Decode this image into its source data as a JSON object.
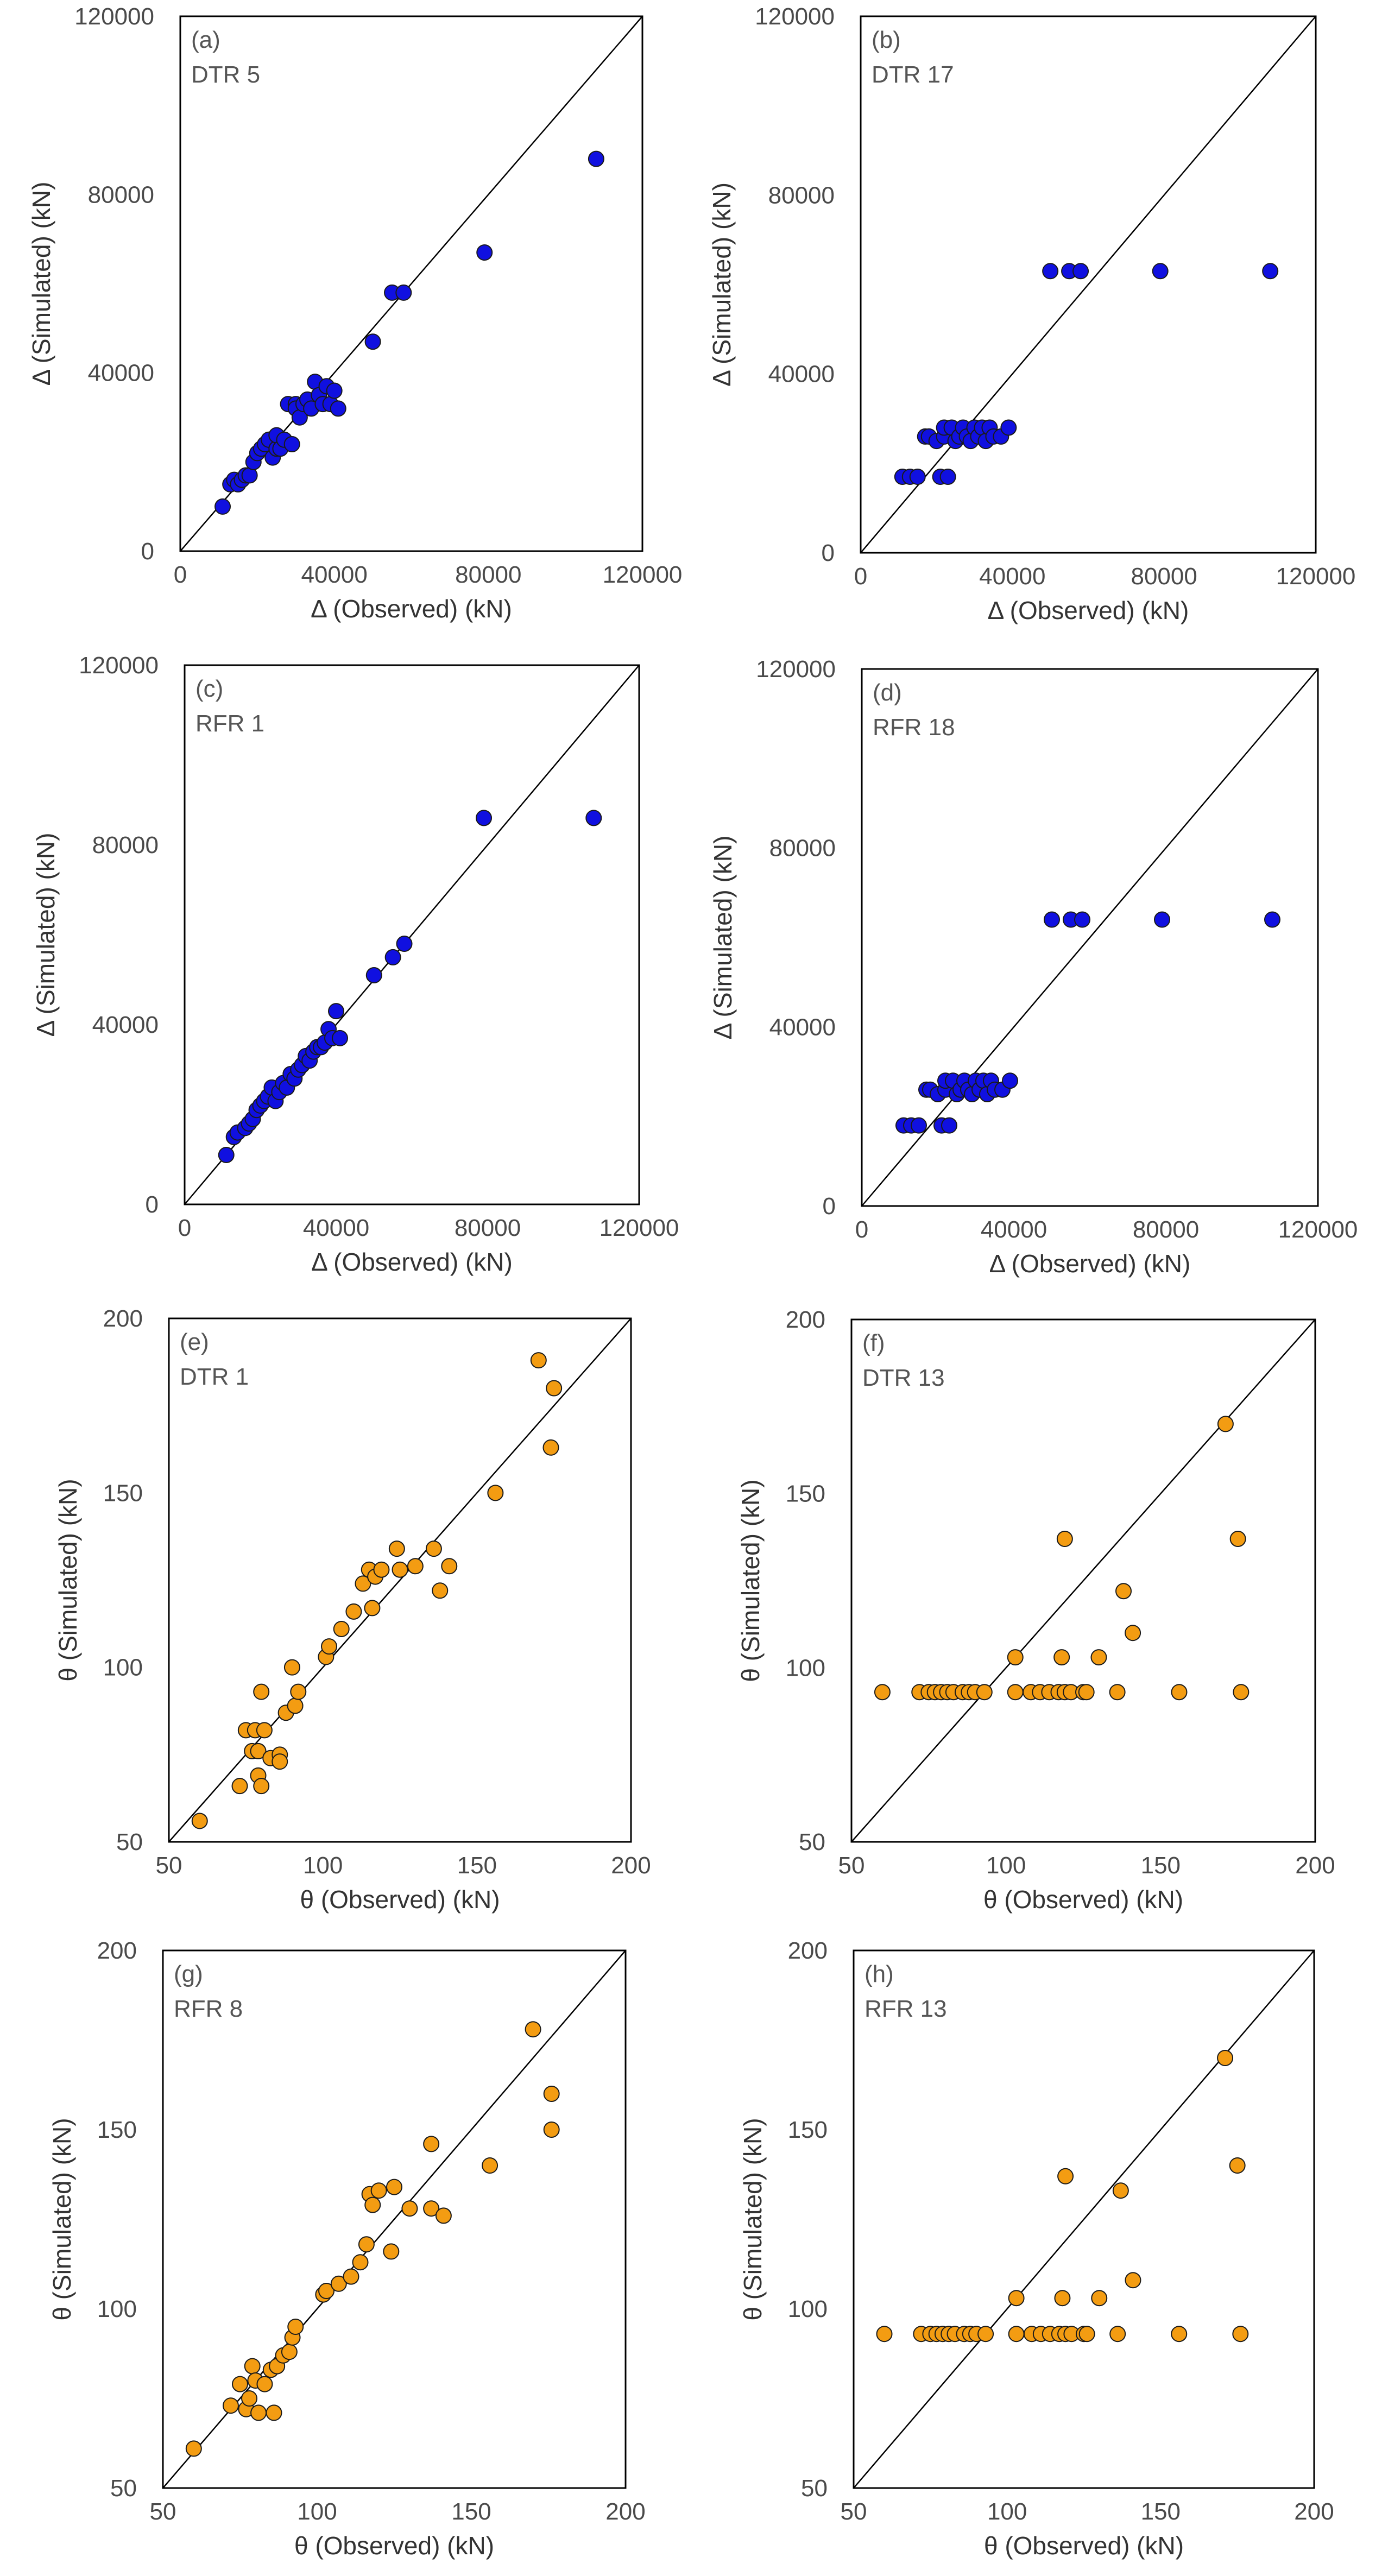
{
  "chart_data": [
    {
      "id": "a",
      "type": "scatter",
      "panel_label": "(a)",
      "subtitle": "DTR 5",
      "xlabel": "Δ (Observed) (kN)",
      "ylabel": "Δ (Simulated) (kN)",
      "xlim": [
        0,
        120000
      ],
      "ylim": [
        0,
        120000
      ],
      "xticks": [
        "0",
        "40000",
        "80000",
        "120000"
      ],
      "yticks": [
        "0",
        "40000",
        "80000",
        "120000"
      ],
      "xtick_values": [
        0,
        40000,
        80000,
        120000
      ],
      "ytick_values": [
        0,
        40000,
        80000,
        120000
      ],
      "reference_line": "y = x",
      "marker_color": "#1010e0",
      "points": [
        [
          11000,
          10000
        ],
        [
          13000,
          15000
        ],
        [
          14000,
          16000
        ],
        [
          15000,
          15000
        ],
        [
          16000,
          16000
        ],
        [
          17000,
          17000
        ],
        [
          18000,
          17000
        ],
        [
          19000,
          20000
        ],
        [
          20000,
          22000
        ],
        [
          21000,
          23000
        ],
        [
          22000,
          24000
        ],
        [
          23000,
          25000
        ],
        [
          24000,
          21000
        ],
        [
          25000,
          23000
        ],
        [
          25000,
          26000
        ],
        [
          26000,
          23000
        ],
        [
          27000,
          25000
        ],
        [
          28000,
          33000
        ],
        [
          29000,
          24000
        ],
        [
          30000,
          33000
        ],
        [
          30000,
          32000
        ],
        [
          31000,
          30000
        ],
        [
          32000,
          33000
        ],
        [
          33000,
          34000
        ],
        [
          34000,
          32000
        ],
        [
          35000,
          38000
        ],
        [
          36000,
          35000
        ],
        [
          37000,
          33000
        ],
        [
          38000,
          37000
        ],
        [
          39000,
          33000
        ],
        [
          40000,
          36000
        ],
        [
          41000,
          32000
        ],
        [
          50000,
          47000
        ],
        [
          55000,
          58000
        ],
        [
          58000,
          58000
        ],
        [
          79000,
          67000
        ],
        [
          108000,
          88000
        ]
      ]
    },
    {
      "id": "b",
      "type": "scatter",
      "panel_label": "(b)",
      "subtitle": "DTR 17",
      "xlabel": "Δ (Observed) (kN)",
      "ylabel": "Δ (Simulated) (kN)",
      "xlim": [
        0,
        120000
      ],
      "ylim": [
        0,
        120000
      ],
      "xticks": [
        "0",
        "40000",
        "80000",
        "120000"
      ],
      "yticks": [
        "0",
        "40000",
        "80000",
        "120000"
      ],
      "xtick_values": [
        0,
        40000,
        80000,
        120000
      ],
      "ytick_values": [
        0,
        40000,
        80000,
        120000
      ],
      "reference_line": "y = x",
      "marker_color": "#1010e0",
      "points": [
        [
          11000,
          17000
        ],
        [
          13000,
          17000
        ],
        [
          15000,
          17000
        ],
        [
          17000,
          26000
        ],
        [
          18000,
          26000
        ],
        [
          20000,
          25000
        ],
        [
          21000,
          17000
        ],
        [
          22000,
          26000
        ],
        [
          22000,
          28000
        ],
        [
          23000,
          17000
        ],
        [
          24000,
          28000
        ],
        [
          25000,
          25000
        ],
        [
          26000,
          26000
        ],
        [
          27000,
          28000
        ],
        [
          28000,
          26000
        ],
        [
          29000,
          25000
        ],
        [
          30000,
          28000
        ],
        [
          31000,
          26000
        ],
        [
          32000,
          28000
        ],
        [
          33000,
          25000
        ],
        [
          34000,
          28000
        ],
        [
          35000,
          26000
        ],
        [
          37000,
          26000
        ],
        [
          39000,
          28000
        ],
        [
          50000,
          63000
        ],
        [
          55000,
          63000
        ],
        [
          58000,
          63000
        ],
        [
          79000,
          63000
        ],
        [
          108000,
          63000
        ]
      ]
    },
    {
      "id": "c",
      "type": "scatter",
      "panel_label": "(c)",
      "subtitle": "RFR 1",
      "xlabel": "Δ (Observed) (kN)",
      "ylabel": "Δ (Simulated) (kN)",
      "xlim": [
        0,
        120000
      ],
      "ylim": [
        0,
        120000
      ],
      "xticks": [
        "0",
        "40000",
        "80000",
        "120000"
      ],
      "yticks": [
        "0",
        "40000",
        "80000",
        "120000"
      ],
      "xtick_values": [
        0,
        40000,
        80000,
        120000
      ],
      "ytick_values": [
        0,
        40000,
        80000,
        120000
      ],
      "reference_line": "y = x",
      "marker_color": "#1010e0",
      "points": [
        [
          11000,
          11000
        ],
        [
          13000,
          15000
        ],
        [
          14000,
          16000
        ],
        [
          16000,
          17000
        ],
        [
          17000,
          18000
        ],
        [
          18000,
          19000
        ],
        [
          19000,
          21000
        ],
        [
          20000,
          22000
        ],
        [
          21000,
          23000
        ],
        [
          22000,
          24000
        ],
        [
          23000,
          26000
        ],
        [
          24000,
          23000
        ],
        [
          25000,
          25000
        ],
        [
          26000,
          27000
        ],
        [
          27000,
          26000
        ],
        [
          28000,
          29000
        ],
        [
          29000,
          28000
        ],
        [
          30000,
          30000
        ],
        [
          31000,
          31000
        ],
        [
          32000,
          33000
        ],
        [
          33000,
          32000
        ],
        [
          34000,
          34000
        ],
        [
          35000,
          35000
        ],
        [
          36000,
          35000
        ],
        [
          37000,
          36000
        ],
        [
          38000,
          39000
        ],
        [
          39000,
          37000
        ],
        [
          40000,
          43000
        ],
        [
          41000,
          37000
        ],
        [
          50000,
          51000
        ],
        [
          55000,
          55000
        ],
        [
          58000,
          58000
        ],
        [
          79000,
          86000
        ],
        [
          108000,
          86000
        ]
      ]
    },
    {
      "id": "d",
      "type": "scatter",
      "panel_label": "(d)",
      "subtitle": "RFR 18",
      "xlabel": "Δ (Observed) (kN)",
      "ylabel": "Δ (Simulated) (kN)",
      "xlim": [
        0,
        120000
      ],
      "ylim": [
        0,
        120000
      ],
      "xticks": [
        "0",
        "40000",
        "80000",
        "120000"
      ],
      "yticks": [
        "0",
        "40000",
        "80000",
        "120000"
      ],
      "xtick_values": [
        0,
        40000,
        80000,
        120000
      ],
      "ytick_values": [
        0,
        40000,
        80000,
        120000
      ],
      "reference_line": "y = x",
      "marker_color": "#1010e0",
      "points": [
        [
          11000,
          18000
        ],
        [
          13000,
          18000
        ],
        [
          15000,
          18000
        ],
        [
          17000,
          26000
        ],
        [
          18000,
          26000
        ],
        [
          20000,
          25000
        ],
        [
          21000,
          18000
        ],
        [
          22000,
          26000
        ],
        [
          22000,
          28000
        ],
        [
          23000,
          18000
        ],
        [
          24000,
          28000
        ],
        [
          25000,
          25000
        ],
        [
          26000,
          26000
        ],
        [
          27000,
          28000
        ],
        [
          28000,
          26000
        ],
        [
          29000,
          25000
        ],
        [
          30000,
          28000
        ],
        [
          31000,
          26000
        ],
        [
          32000,
          28000
        ],
        [
          33000,
          25000
        ],
        [
          34000,
          28000
        ],
        [
          35000,
          26000
        ],
        [
          37000,
          26000
        ],
        [
          39000,
          28000
        ],
        [
          50000,
          64000
        ],
        [
          55000,
          64000
        ],
        [
          58000,
          64000
        ],
        [
          79000,
          64000
        ],
        [
          108000,
          64000
        ]
      ]
    },
    {
      "id": "e",
      "type": "scatter",
      "panel_label": "(e)",
      "subtitle": "DTR 1",
      "xlabel": "θ (Observed) (kN)",
      "ylabel": "θ (Simulated) (kN)",
      "xlim": [
        50,
        200
      ],
      "ylim": [
        50,
        200
      ],
      "xticks": [
        "50",
        "100",
        "150",
        "200"
      ],
      "yticks": [
        "50",
        "100",
        "150",
        "200"
      ],
      "xtick_values": [
        50,
        100,
        150,
        200
      ],
      "ytick_values": [
        50,
        100,
        150,
        200
      ],
      "reference_line": "y = x",
      "marker_color": "#f39c12",
      "points": [
        [
          60,
          56
        ],
        [
          73,
          66
        ],
        [
          75,
          82
        ],
        [
          77,
          76
        ],
        [
          78,
          82
        ],
        [
          79,
          69
        ],
        [
          79,
          76
        ],
        [
          80,
          66
        ],
        [
          80,
          93
        ],
        [
          81,
          82
        ],
        [
          83,
          74
        ],
        [
          86,
          75
        ],
        [
          86,
          73
        ],
        [
          88,
          87
        ],
        [
          90,
          100
        ],
        [
          91,
          89
        ],
        [
          92,
          93
        ],
        [
          101,
          103
        ],
        [
          102,
          106
        ],
        [
          106,
          111
        ],
        [
          110,
          116
        ],
        [
          113,
          124
        ],
        [
          115,
          128
        ],
        [
          116,
          117
        ],
        [
          117,
          126
        ],
        [
          119,
          128
        ],
        [
          124,
          134
        ],
        [
          125,
          128
        ],
        [
          130,
          129
        ],
        [
          136,
          134
        ],
        [
          138,
          122
        ],
        [
          141,
          129
        ],
        [
          156,
          150
        ],
        [
          170,
          188
        ],
        [
          174,
          163
        ],
        [
          175,
          180
        ]
      ]
    },
    {
      "id": "f",
      "type": "scatter",
      "panel_label": "(f)",
      "subtitle": "DTR 13",
      "xlabel": "θ (Observed) (kN)",
      "ylabel": "θ (Simulated) (kN)",
      "xlim": [
        50,
        200
      ],
      "ylim": [
        50,
        200
      ],
      "xticks": [
        "50",
        "100",
        "150",
        "200"
      ],
      "yticks": [
        "50",
        "100",
        "150",
        "200"
      ],
      "xtick_values": [
        50,
        100,
        150,
        200
      ],
      "ytick_values": [
        50,
        100,
        150,
        200
      ],
      "reference_line": "y = x",
      "marker_color": "#f39c12",
      "points": [
        [
          60,
          93
        ],
        [
          72,
          93
        ],
        [
          75,
          93
        ],
        [
          77,
          93
        ],
        [
          79,
          93
        ],
        [
          81,
          93
        ],
        [
          83,
          93
        ],
        [
          86,
          93
        ],
        [
          88,
          93
        ],
        [
          90,
          93
        ],
        [
          93,
          93
        ],
        [
          103,
          93
        ],
        [
          103,
          103
        ],
        [
          108,
          93
        ],
        [
          111,
          93
        ],
        [
          114,
          93
        ],
        [
          117,
          93
        ],
        [
          118,
          103
        ],
        [
          119,
          93
        ],
        [
          119,
          137
        ],
        [
          121,
          93
        ],
        [
          125,
          93
        ],
        [
          126,
          93
        ],
        [
          130,
          103
        ],
        [
          136,
          93
        ],
        [
          138,
          122
        ],
        [
          141,
          110
        ],
        [
          156,
          93
        ],
        [
          171,
          170
        ],
        [
          175,
          137
        ],
        [
          176,
          93
        ]
      ]
    },
    {
      "id": "g",
      "type": "scatter",
      "panel_label": "(g)",
      "subtitle": "RFR 8",
      "xlabel": "θ (Observed) (kN)",
      "ylabel": "θ (Simulated) (kN)",
      "xlim": [
        50,
        200
      ],
      "ylim": [
        50,
        200
      ],
      "xticks": [
        "50",
        "100",
        "150",
        "200"
      ],
      "yticks": [
        "50",
        "100",
        "150",
        "200"
      ],
      "xtick_values": [
        50,
        100,
        150,
        200
      ],
      "ytick_values": [
        50,
        100,
        150,
        200
      ],
      "reference_line": "y = x",
      "marker_color": "#f39c12",
      "points": [
        [
          60,
          61
        ],
        [
          72,
          73
        ],
        [
          75,
          79
        ],
        [
          77,
          72
        ],
        [
          78,
          75
        ],
        [
          79,
          84
        ],
        [
          80,
          80
        ],
        [
          81,
          71
        ],
        [
          83,
          79
        ],
        [
          85,
          83
        ],
        [
          86,
          71
        ],
        [
          87,
          84
        ],
        [
          89,
          87
        ],
        [
          91,
          88
        ],
        [
          92,
          92
        ],
        [
          93,
          95
        ],
        [
          102,
          104
        ],
        [
          103,
          105
        ],
        [
          107,
          107
        ],
        [
          111,
          109
        ],
        [
          114,
          113
        ],
        [
          116,
          118
        ],
        [
          117,
          132
        ],
        [
          118,
          129
        ],
        [
          120,
          133
        ],
        [
          124,
          116
        ],
        [
          125,
          134
        ],
        [
          130,
          128
        ],
        [
          137,
          128
        ],
        [
          137,
          146
        ],
        [
          141,
          126
        ],
        [
          156,
          140
        ],
        [
          170,
          178
        ],
        [
          176,
          150
        ],
        [
          176,
          160
        ]
      ]
    },
    {
      "id": "h",
      "type": "scatter",
      "panel_label": "(h)",
      "subtitle": "RFR 13",
      "xlabel": "θ (Observed) (kN)",
      "ylabel": "θ (Simulated) (kN)",
      "xlim": [
        50,
        200
      ],
      "ylim": [
        50,
        200
      ],
      "xticks": [
        "50",
        "100",
        "150",
        "200"
      ],
      "yticks": [
        "50",
        "100",
        "150",
        "200"
      ],
      "xtick_values": [
        50,
        100,
        150,
        200
      ],
      "ytick_values": [
        50,
        100,
        150,
        200
      ],
      "reference_line": "y = x",
      "marker_color": "#f39c12",
      "points": [
        [
          60,
          93
        ],
        [
          72,
          93
        ],
        [
          75,
          93
        ],
        [
          77,
          93
        ],
        [
          79,
          93
        ],
        [
          81,
          93
        ],
        [
          83,
          93
        ],
        [
          86,
          93
        ],
        [
          88,
          93
        ],
        [
          90,
          93
        ],
        [
          93,
          93
        ],
        [
          103,
          93
        ],
        [
          103,
          103
        ],
        [
          108,
          93
        ],
        [
          111,
          93
        ],
        [
          114,
          93
        ],
        [
          117,
          93
        ],
        [
          118,
          103
        ],
        [
          119,
          93
        ],
        [
          119,
          137
        ],
        [
          121,
          93
        ],
        [
          125,
          93
        ],
        [
          126,
          93
        ],
        [
          130,
          103
        ],
        [
          136,
          93
        ],
        [
          137,
          133
        ],
        [
          141,
          108
        ],
        [
          156,
          93
        ],
        [
          171,
          170
        ],
        [
          175,
          140
        ],
        [
          176,
          93
        ]
      ]
    }
  ]
}
